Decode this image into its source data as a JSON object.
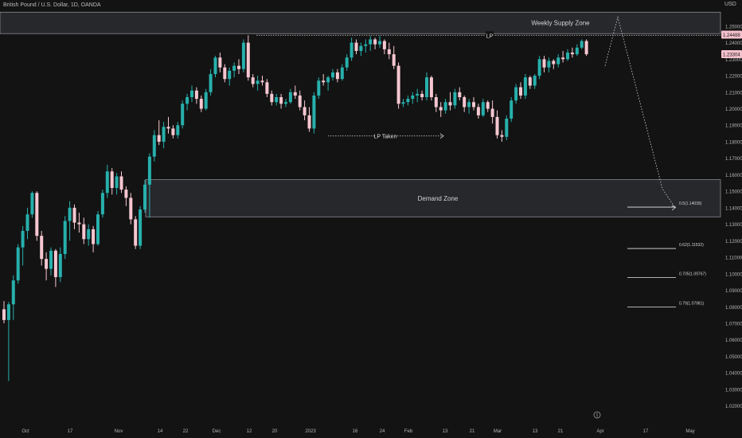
{
  "header": {
    "symbol_title": "British Pound / U.S. Dollar, 1D, OANDA",
    "currency": "USD"
  },
  "chart_data": {
    "type": "candlestick",
    "yticks": [
      "1.25000",
      "1.24000",
      "1.23000",
      "1.22000",
      "1.21000",
      "1.20000",
      "1.19000",
      "1.18000",
      "1.17000",
      "1.16000",
      "1.15000",
      "1.14000",
      "1.13000",
      "1.12000",
      "1.11000",
      "1.10000",
      "1.09000",
      "1.08000",
      "1.07000",
      "1.06000",
      "1.05000",
      "1.04000",
      "1.03000",
      "1.02000"
    ],
    "ylim": [
      1.015,
      1.262
    ],
    "xticks": [
      "Oct",
      "17",
      "Nov",
      "14",
      "22",
      "Dec",
      "12",
      "20",
      "2023",
      "16",
      "24",
      "Feb",
      "13",
      "21",
      "Mar",
      "13",
      "21",
      "Apr",
      "17",
      "May"
    ],
    "price_badges": [
      {
        "label": "1.24488",
        "value": 1.24488
      },
      {
        "label": "1.23304",
        "value": 1.23304
      }
    ],
    "zones": [
      {
        "label": "Weekly Supply Zone",
        "top": 1.2585,
        "bottom": 1.2455
      },
      {
        "label": "Demand Zone",
        "top": 1.157,
        "bottom": 1.1345
      }
    ],
    "annotations": [
      {
        "label": "LP",
        "value": 1.2445
      },
      {
        "label": "LP Taken",
        "value": 1.1835
      }
    ],
    "fib_levels": [
      {
        "label": "0.5(1.14039)",
        "value": 1.14039
      },
      {
        "label": "0.62(1.11532)",
        "value": 1.11532
      },
      {
        "label": "0.705(1.09767)",
        "value": 1.09767
      },
      {
        "label": "0.79(1.07981)",
        "value": 1.07981
      }
    ],
    "projection": [
      {
        "date": "2023-04-01",
        "value": 1.226
      },
      {
        "date": "2023-04-10",
        "value": 1.2555
      },
      {
        "date": "2023-05-10",
        "value": 1.1515
      },
      {
        "date": "2023-05-18",
        "value": 1.14
      }
    ],
    "candles": [
      {
        "o": 1.0785,
        "h": 1.0835,
        "l": 1.07,
        "c": 1.072
      },
      {
        "o": 1.072,
        "h": 1.083,
        "l": 1.035,
        "c": 1.0815
      },
      {
        "o": 1.0815,
        "h": 1.099,
        "l": 1.072,
        "c": 1.096
      },
      {
        "o": 1.096,
        "h": 1.118,
        "l": 1.094,
        "c": 1.116
      },
      {
        "o": 1.116,
        "h": 1.129,
        "l": 1.105,
        "c": 1.126
      },
      {
        "o": 1.126,
        "h": 1.14,
        "l": 1.121,
        "c": 1.136
      },
      {
        "o": 1.136,
        "h": 1.15,
        "l": 1.134,
        "c": 1.149
      },
      {
        "o": 1.149,
        "h": 1.15,
        "l": 1.12,
        "c": 1.123
      },
      {
        "o": 1.123,
        "h": 1.126,
        "l": 1.105,
        "c": 1.109
      },
      {
        "o": 1.109,
        "h": 1.113,
        "l": 1.096,
        "c": 1.103
      },
      {
        "o": 1.103,
        "h": 1.116,
        "l": 1.099,
        "c": 1.114
      },
      {
        "o": 1.114,
        "h": 1.115,
        "l": 1.092,
        "c": 1.098
      },
      {
        "o": 1.098,
        "h": 1.116,
        "l": 1.095,
        "c": 1.112
      },
      {
        "o": 1.112,
        "h": 1.135,
        "l": 1.109,
        "c": 1.132
      },
      {
        "o": 1.132,
        "h": 1.144,
        "l": 1.12,
        "c": 1.14
      },
      {
        "o": 1.14,
        "h": 1.142,
        "l": 1.127,
        "c": 1.131
      },
      {
        "o": 1.131,
        "h": 1.137,
        "l": 1.125,
        "c": 1.13
      },
      {
        "o": 1.13,
        "h": 1.134,
        "l": 1.118,
        "c": 1.121
      },
      {
        "o": 1.121,
        "h": 1.13,
        "l": 1.117,
        "c": 1.127
      },
      {
        "o": 1.127,
        "h": 1.129,
        "l": 1.113,
        "c": 1.118
      },
      {
        "o": 1.118,
        "h": 1.138,
        "l": 1.117,
        "c": 1.136
      },
      {
        "o": 1.136,
        "h": 1.151,
        "l": 1.134,
        "c": 1.149
      },
      {
        "o": 1.149,
        "h": 1.166,
        "l": 1.146,
        "c": 1.162
      },
      {
        "o": 1.162,
        "h": 1.164,
        "l": 1.148,
        "c": 1.152
      },
      {
        "o": 1.152,
        "h": 1.161,
        "l": 1.148,
        "c": 1.159
      },
      {
        "o": 1.159,
        "h": 1.162,
        "l": 1.149,
        "c": 1.151
      },
      {
        "o": 1.151,
        "h": 1.153,
        "l": 1.141,
        "c": 1.146
      },
      {
        "o": 1.146,
        "h": 1.149,
        "l": 1.13,
        "c": 1.133
      },
      {
        "o": 1.133,
        "h": 1.135,
        "l": 1.115,
        "c": 1.117
      },
      {
        "o": 1.117,
        "h": 1.141,
        "l": 1.115,
        "c": 1.139
      },
      {
        "o": 1.139,
        "h": 1.157,
        "l": 1.137,
        "c": 1.154
      },
      {
        "o": 1.154,
        "h": 1.173,
        "l": 1.134,
        "c": 1.171
      },
      {
        "o": 1.171,
        "h": 1.187,
        "l": 1.168,
        "c": 1.184
      },
      {
        "o": 1.184,
        "h": 1.193,
        "l": 1.178,
        "c": 1.18
      },
      {
        "o": 1.18,
        "h": 1.192,
        "l": 1.176,
        "c": 1.189
      },
      {
        "o": 1.189,
        "h": 1.195,
        "l": 1.185,
        "c": 1.188
      },
      {
        "o": 1.188,
        "h": 1.19,
        "l": 1.182,
        "c": 1.184
      },
      {
        "o": 1.184,
        "h": 1.192,
        "l": 1.182,
        "c": 1.19
      },
      {
        "o": 1.19,
        "h": 1.205,
        "l": 1.188,
        "c": 1.203
      },
      {
        "o": 1.203,
        "h": 1.209,
        "l": 1.199,
        "c": 1.207
      },
      {
        "o": 1.207,
        "h": 1.214,
        "l": 1.204,
        "c": 1.211
      },
      {
        "o": 1.211,
        "h": 1.213,
        "l": 1.203,
        "c": 1.206
      },
      {
        "o": 1.206,
        "h": 1.208,
        "l": 1.198,
        "c": 1.2
      },
      {
        "o": 1.2,
        "h": 1.212,
        "l": 1.199,
        "c": 1.21
      },
      {
        "o": 1.21,
        "h": 1.224,
        "l": 1.208,
        "c": 1.221
      },
      {
        "o": 1.221,
        "h": 1.232,
        "l": 1.219,
        "c": 1.231
      },
      {
        "o": 1.231,
        "h": 1.234,
        "l": 1.222,
        "c": 1.225
      },
      {
        "o": 1.225,
        "h": 1.227,
        "l": 1.216,
        "c": 1.218
      },
      {
        "o": 1.218,
        "h": 1.225,
        "l": 1.214,
        "c": 1.223
      },
      {
        "o": 1.223,
        "h": 1.228,
        "l": 1.219,
        "c": 1.226
      },
      {
        "o": 1.226,
        "h": 1.23,
        "l": 1.221,
        "c": 1.224
      },
      {
        "o": 1.224,
        "h": 1.242,
        "l": 1.222,
        "c": 1.24
      },
      {
        "o": 1.24,
        "h": 1.2445,
        "l": 1.217,
        "c": 1.219
      },
      {
        "o": 1.219,
        "h": 1.221,
        "l": 1.213,
        "c": 1.215
      },
      {
        "o": 1.215,
        "h": 1.22,
        "l": 1.211,
        "c": 1.217
      },
      {
        "o": 1.217,
        "h": 1.22,
        "l": 1.214,
        "c": 1.216
      },
      {
        "o": 1.216,
        "h": 1.218,
        "l": 1.207,
        "c": 1.209
      },
      {
        "o": 1.209,
        "h": 1.211,
        "l": 1.202,
        "c": 1.204
      },
      {
        "o": 1.204,
        "h": 1.209,
        "l": 1.202,
        "c": 1.207
      },
      {
        "o": 1.207,
        "h": 1.209,
        "l": 1.2,
        "c": 1.203
      },
      {
        "o": 1.203,
        "h": 1.206,
        "l": 1.201,
        "c": 1.204
      },
      {
        "o": 1.204,
        "h": 1.212,
        "l": 1.203,
        "c": 1.21
      },
      {
        "o": 1.21,
        "h": 1.214,
        "l": 1.206,
        "c": 1.208
      },
      {
        "o": 1.208,
        "h": 1.211,
        "l": 1.199,
        "c": 1.201
      },
      {
        "o": 1.201,
        "h": 1.205,
        "l": 1.193,
        "c": 1.196
      },
      {
        "o": 1.196,
        "h": 1.201,
        "l": 1.186,
        "c": 1.188
      },
      {
        "o": 1.188,
        "h": 1.21,
        "l": 1.185,
        "c": 1.208
      },
      {
        "o": 1.208,
        "h": 1.219,
        "l": 1.206,
        "c": 1.217
      },
      {
        "o": 1.217,
        "h": 1.221,
        "l": 1.214,
        "c": 1.216
      },
      {
        "o": 1.216,
        "h": 1.22,
        "l": 1.211,
        "c": 1.219
      },
      {
        "o": 1.219,
        "h": 1.224,
        "l": 1.217,
        "c": 1.222
      },
      {
        "o": 1.222,
        "h": 1.224,
        "l": 1.216,
        "c": 1.218
      },
      {
        "o": 1.218,
        "h": 1.227,
        "l": 1.217,
        "c": 1.225
      },
      {
        "o": 1.225,
        "h": 1.233,
        "l": 1.223,
        "c": 1.231
      },
      {
        "o": 1.231,
        "h": 1.243,
        "l": 1.229,
        "c": 1.24
      },
      {
        "o": 1.24,
        "h": 1.242,
        "l": 1.233,
        "c": 1.235
      },
      {
        "o": 1.235,
        "h": 1.24,
        "l": 1.232,
        "c": 1.238
      },
      {
        "o": 1.238,
        "h": 1.242,
        "l": 1.234,
        "c": 1.239
      },
      {
        "o": 1.239,
        "h": 1.244,
        "l": 1.235,
        "c": 1.242
      },
      {
        "o": 1.242,
        "h": 1.243,
        "l": 1.236,
        "c": 1.239
      },
      {
        "o": 1.239,
        "h": 1.244,
        "l": 1.237,
        "c": 1.241
      },
      {
        "o": 1.241,
        "h": 1.242,
        "l": 1.233,
        "c": 1.236
      },
      {
        "o": 1.236,
        "h": 1.24,
        "l": 1.23,
        "c": 1.233
      },
      {
        "o": 1.233,
        "h": 1.238,
        "l": 1.224,
        "c": 1.226
      },
      {
        "o": 1.226,
        "h": 1.228,
        "l": 1.2,
        "c": 1.203
      },
      {
        "o": 1.203,
        "h": 1.206,
        "l": 1.201,
        "c": 1.204
      },
      {
        "o": 1.204,
        "h": 1.208,
        "l": 1.202,
        "c": 1.206
      },
      {
        "o": 1.206,
        "h": 1.21,
        "l": 1.203,
        "c": 1.208
      },
      {
        "o": 1.208,
        "h": 1.212,
        "l": 1.204,
        "c": 1.209
      },
      {
        "o": 1.209,
        "h": 1.211,
        "l": 1.205,
        "c": 1.207
      },
      {
        "o": 1.207,
        "h": 1.222,
        "l": 1.205,
        "c": 1.219
      },
      {
        "o": 1.219,
        "h": 1.22,
        "l": 1.205,
        "c": 1.207
      },
      {
        "o": 1.207,
        "h": 1.209,
        "l": 1.198,
        "c": 1.201
      },
      {
        "o": 1.201,
        "h": 1.204,
        "l": 1.195,
        "c": 1.199
      },
      {
        "o": 1.199,
        "h": 1.206,
        "l": 1.197,
        "c": 1.204
      },
      {
        "o": 1.204,
        "h": 1.21,
        "l": 1.199,
        "c": 1.202
      },
      {
        "o": 1.202,
        "h": 1.212,
        "l": 1.2,
        "c": 1.21
      },
      {
        "o": 1.21,
        "h": 1.213,
        "l": 1.205,
        "c": 1.207
      },
      {
        "o": 1.207,
        "h": 1.208,
        "l": 1.198,
        "c": 1.201
      },
      {
        "o": 1.201,
        "h": 1.206,
        "l": 1.197,
        "c": 1.204
      },
      {
        "o": 1.204,
        "h": 1.207,
        "l": 1.199,
        "c": 1.201
      },
      {
        "o": 1.201,
        "h": 1.203,
        "l": 1.194,
        "c": 1.196
      },
      {
        "o": 1.196,
        "h": 1.206,
        "l": 1.195,
        "c": 1.204
      },
      {
        "o": 1.204,
        "h": 1.205,
        "l": 1.198,
        "c": 1.2
      },
      {
        "o": 1.2,
        "h": 1.205,
        "l": 1.191,
        "c": 1.195
      },
      {
        "o": 1.195,
        "h": 1.199,
        "l": 1.182,
        "c": 1.184
      },
      {
        "o": 1.184,
        "h": 1.187,
        "l": 1.18,
        "c": 1.183
      },
      {
        "o": 1.183,
        "h": 1.196,
        "l": 1.181,
        "c": 1.194
      },
      {
        "o": 1.194,
        "h": 1.207,
        "l": 1.192,
        "c": 1.205
      },
      {
        "o": 1.205,
        "h": 1.215,
        "l": 1.203,
        "c": 1.213
      },
      {
        "o": 1.213,
        "h": 1.216,
        "l": 1.206,
        "c": 1.208
      },
      {
        "o": 1.208,
        "h": 1.221,
        "l": 1.206,
        "c": 1.219
      },
      {
        "o": 1.219,
        "h": 1.22,
        "l": 1.212,
        "c": 1.214
      },
      {
        "o": 1.214,
        "h": 1.221,
        "l": 1.212,
        "c": 1.22
      },
      {
        "o": 1.22,
        "h": 1.232,
        "l": 1.218,
        "c": 1.23
      },
      {
        "o": 1.23,
        "h": 1.232,
        "l": 1.222,
        "c": 1.225
      },
      {
        "o": 1.225,
        "h": 1.231,
        "l": 1.222,
        "c": 1.229
      },
      {
        "o": 1.229,
        "h": 1.23,
        "l": 1.224,
        "c": 1.227
      },
      {
        "o": 1.227,
        "h": 1.233,
        "l": 1.225,
        "c": 1.231
      },
      {
        "o": 1.231,
        "h": 1.235,
        "l": 1.228,
        "c": 1.23
      },
      {
        "o": 1.23,
        "h": 1.236,
        "l": 1.229,
        "c": 1.234
      },
      {
        "o": 1.234,
        "h": 1.237,
        "l": 1.231,
        "c": 1.233
      },
      {
        "o": 1.233,
        "h": 1.239,
        "l": 1.232,
        "c": 1.237
      },
      {
        "o": 1.237,
        "h": 1.242,
        "l": 1.236,
        "c": 1.241
      },
      {
        "o": 1.241,
        "h": 1.242,
        "l": 1.232,
        "c": 1.233
      }
    ],
    "colors": {
      "background": "#131313",
      "up": "#27b0ac",
      "down": "#f7c7d1",
      "zone_fill": "#2f3035",
      "zone_border": "#9a9ca3"
    }
  }
}
